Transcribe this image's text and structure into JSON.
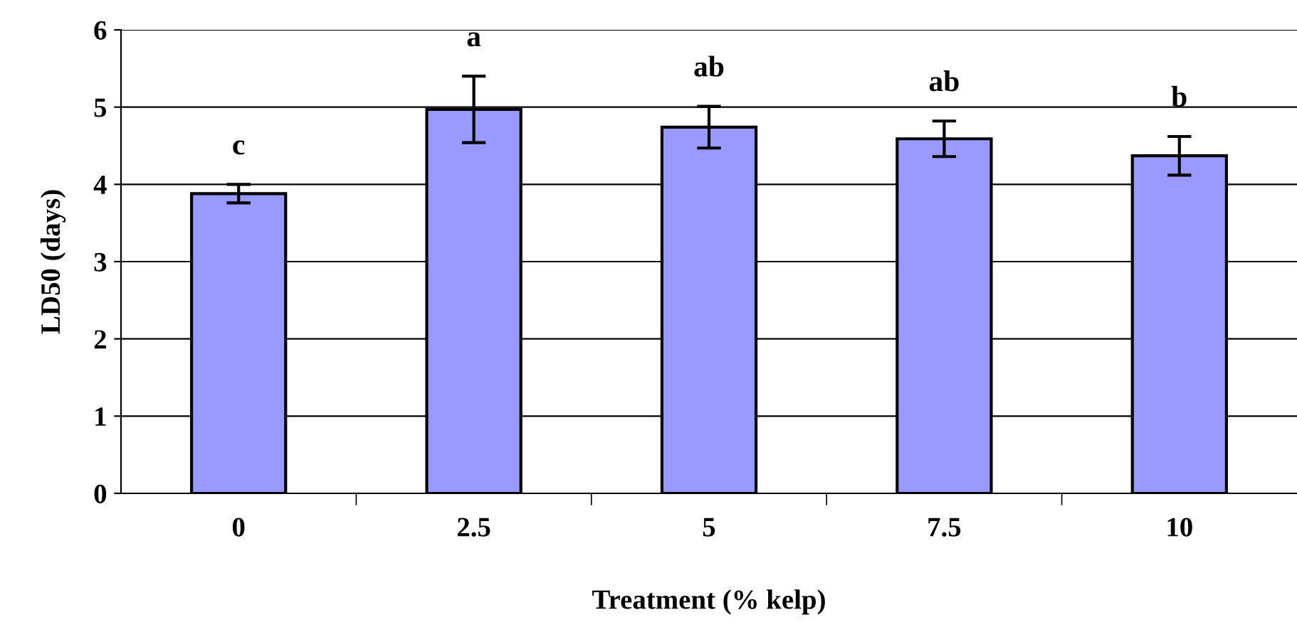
{
  "chart_data": {
    "type": "bar",
    "xlabel": "Treatment (% kelp)",
    "ylabel": "LD50 (days)",
    "categories": [
      "0",
      "2.5",
      "5",
      "7.5",
      "10"
    ],
    "values": [
      3.88,
      4.97,
      4.74,
      4.59,
      4.37
    ],
    "errors": [
      0.12,
      0.43,
      0.27,
      0.23,
      0.25
    ],
    "color": "#9999ff",
    "ylim": [
      0,
      6
    ],
    "yticks": [
      0,
      1,
      2,
      3,
      4,
      5,
      6
    ],
    "grid": "y",
    "annotations": [
      "c",
      "a",
      "ab",
      "ab",
      "b"
    ]
  }
}
